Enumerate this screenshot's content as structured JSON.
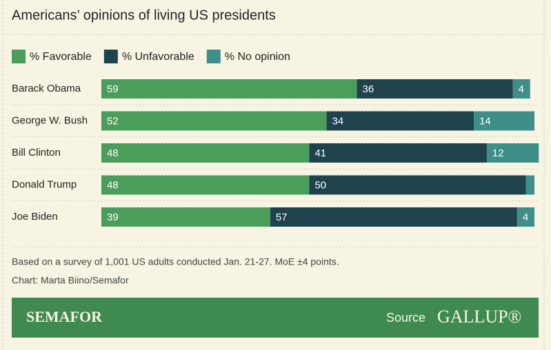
{
  "chart_data": {
    "type": "stacked-bar-horizontal",
    "title": "Americans’ opinions of living US presidents",
    "categories": [
      "Barack Obama",
      "George W. Bush",
      "Bill Clinton",
      "Donald Trump",
      "Joe Biden"
    ],
    "series": [
      {
        "name": "% Favorable",
        "color": "#4b9d5b",
        "values": [
          59,
          52,
          48,
          48,
          39
        ]
      },
      {
        "name": "% Unfavorable",
        "color": "#1e434e",
        "values": [
          36,
          34,
          41,
          50,
          57
        ]
      },
      {
        "name": "% No opinion",
        "color": "#3e8f89",
        "values": [
          4,
          14,
          12,
          2,
          4
        ]
      }
    ],
    "notes": [
      "Based on a survey of 1,001 US adults conducted Jan. 21-27. MoE ±4 points.",
      "Chart: Marta Biino/Semafor"
    ]
  },
  "footer": {
    "brand": "SEMAFOR",
    "source_label": "Source",
    "source": "GALLUP®"
  }
}
